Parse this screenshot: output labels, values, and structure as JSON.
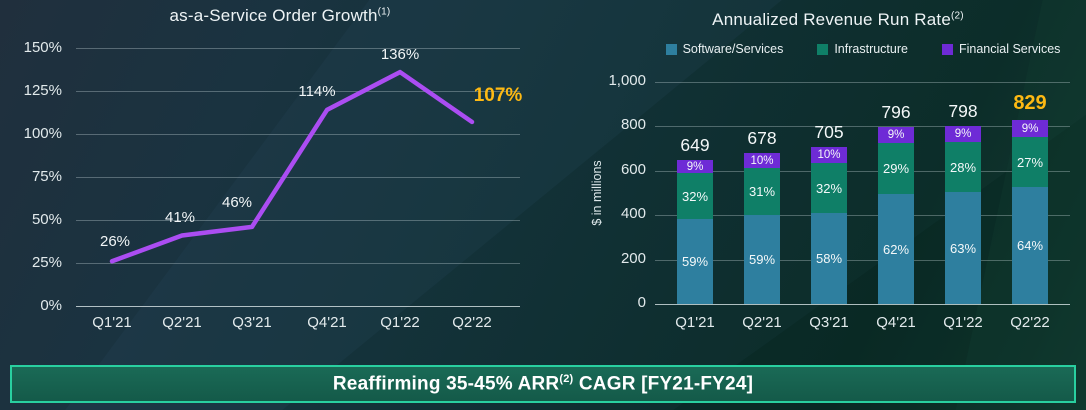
{
  "banner": {
    "prefix": "Reaffirming 35-45% ARR",
    "superscript": "(2)",
    "suffix": " CAGR [FY21-FY24]",
    "background": "#145a49",
    "border_color": "#29d0a0"
  },
  "colors": {
    "accent_gold": "#fdb913",
    "line_purple": "#ab4df2",
    "text": "#e9f0f2"
  },
  "chart_data": [
    {
      "type": "line",
      "title": "as-a-Service Order Growth",
      "title_superscript": "(1)",
      "categories": [
        "Q1'21",
        "Q2'21",
        "Q3'21",
        "Q4'21",
        "Q1'22",
        "Q2'22"
      ],
      "values": [
        26,
        41,
        46,
        114,
        136,
        107
      ],
      "point_labels": [
        "26%",
        "41%",
        "46%",
        "114%",
        "136%",
        "107%"
      ],
      "ylim": [
        0,
        150
      ],
      "ytick_labels": [
        "0%",
        "25%",
        "50%",
        "75%",
        "100%",
        "125%",
        "150%"
      ],
      "ytick_step": 25,
      "grid": true,
      "legend_position": "none",
      "line_color": "#ab4df2",
      "highlight_last": true,
      "highlight_color": "#fdb913"
    },
    {
      "type": "bar",
      "subtype": "stacked-percent-of-total",
      "title": "Annualized Revenue Run Rate",
      "title_superscript": "(2)",
      "ylabel": "$ in millions",
      "categories": [
        "Q1'21",
        "Q2'21",
        "Q3'21",
        "Q4'21",
        "Q1'22",
        "Q2'22"
      ],
      "totals": [
        649,
        678,
        705,
        796,
        798,
        829
      ],
      "series": [
        {
          "name": "Software/Services",
          "color": "#2e7f9f",
          "pct_values": [
            59,
            59,
            58,
            62,
            63,
            64
          ]
        },
        {
          "name": "Infrastructure",
          "color": "#0f7f67",
          "pct_values": [
            32,
            31,
            32,
            29,
            28,
            27
          ]
        },
        {
          "name": "Financial Services",
          "color": "#6e2bd6",
          "pct_values": [
            9,
            10,
            10,
            9,
            9,
            9
          ]
        }
      ],
      "ylim": [
        0,
        1000
      ],
      "ytick_labels": [
        "0",
        "200",
        "400",
        "600",
        "800",
        "1,000"
      ],
      "ytick_step": 200,
      "grid": true,
      "legend_position": "top",
      "highlight_last": true,
      "highlight_color": "#fdb913"
    }
  ]
}
